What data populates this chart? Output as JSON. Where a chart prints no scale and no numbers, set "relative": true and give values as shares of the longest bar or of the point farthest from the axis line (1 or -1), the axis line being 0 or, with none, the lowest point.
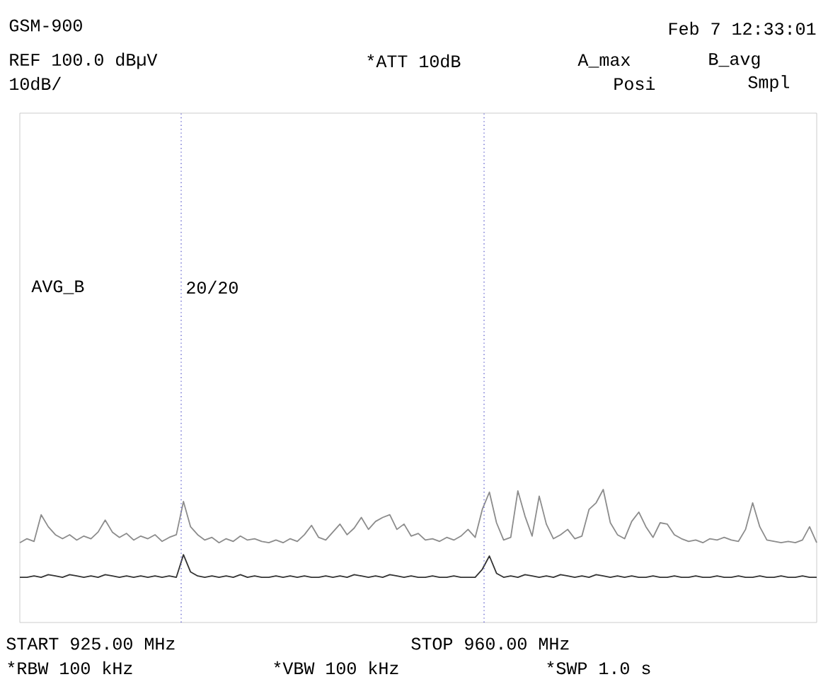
{
  "chart_data": {
    "type": "line",
    "title": "GSM-900",
    "relative": true,
    "categories": [
      null,
      null,
      null,
      null,
      null,
      null,
      null,
      null,
      null,
      null,
      null,
      null,
      null,
      null,
      null,
      null,
      null,
      null,
      null,
      null,
      null,
      null,
      null,
      null,
      null,
      null,
      null,
      null,
      null,
      null,
      null,
      null,
      null,
      null,
      null,
      null,
      null,
      null,
      null,
      null,
      null,
      null,
      null,
      null,
      null,
      null,
      null,
      null,
      null,
      null,
      null,
      null,
      null,
      null,
      null,
      null,
      null,
      null,
      null,
      null,
      null,
      null,
      null,
      null,
      null,
      null,
      null,
      null,
      null,
      null,
      null,
      null,
      null,
      null,
      null,
      null,
      null,
      null,
      null,
      null,
      null,
      null,
      null,
      null,
      null,
      null,
      null,
      null,
      null,
      null,
      null,
      null,
      null,
      null,
      null,
      null,
      null,
      null,
      null,
      null,
      null,
      null,
      null,
      null,
      null,
      null,
      null,
      null,
      null,
      null,
      null,
      null,
      null
    ],
    "series": [
      {
        "color": "#8c8c8c",
        "values": [
          0.6,
          0.63,
          0.61,
          0.81,
          0.72,
          0.66,
          0.63,
          0.66,
          0.62,
          0.65,
          0.63,
          0.68,
          0.77,
          0.68,
          0.64,
          0.67,
          0.62,
          0.65,
          0.63,
          0.66,
          0.61,
          0.64,
          0.66,
          0.91,
          0.72,
          0.66,
          0.62,
          0.64,
          0.6,
          0.63,
          0.61,
          0.65,
          0.62,
          0.63,
          0.61,
          0.6,
          0.62,
          0.6,
          0.63,
          0.61,
          0.66,
          0.73,
          0.64,
          0.62,
          0.68,
          0.74,
          0.66,
          0.71,
          0.79,
          0.7,
          0.76,
          0.79,
          0.81,
          0.7,
          0.74,
          0.65,
          0.67,
          0.62,
          0.63,
          0.61,
          0.64,
          0.62,
          0.65,
          0.7,
          0.64,
          0.85,
          0.98,
          0.75,
          0.62,
          0.64,
          0.99,
          0.8,
          0.65,
          0.95,
          0.74,
          0.63,
          0.66,
          0.7,
          0.63,
          0.65,
          0.85,
          0.9,
          1.0,
          0.75,
          0.66,
          0.63,
          0.76,
          0.83,
          0.72,
          0.64,
          0.75,
          0.74,
          0.66,
          0.63,
          0.61,
          0.62,
          0.6,
          0.63,
          0.62,
          0.64,
          0.62,
          0.61,
          0.7,
          0.9,
          0.72,
          0.62,
          0.61,
          0.6,
          0.61,
          0.6,
          0.62,
          0.72,
          0.6
        ]
      },
      {
        "color": "#333333",
        "values": [
          0.34,
          0.34,
          0.35,
          0.34,
          0.36,
          0.35,
          0.34,
          0.36,
          0.35,
          0.34,
          0.35,
          0.34,
          0.36,
          0.35,
          0.34,
          0.35,
          0.34,
          0.35,
          0.34,
          0.35,
          0.34,
          0.35,
          0.34,
          0.51,
          0.38,
          0.35,
          0.34,
          0.35,
          0.34,
          0.35,
          0.34,
          0.36,
          0.34,
          0.35,
          0.34,
          0.34,
          0.35,
          0.34,
          0.35,
          0.34,
          0.35,
          0.34,
          0.34,
          0.35,
          0.34,
          0.35,
          0.34,
          0.36,
          0.35,
          0.34,
          0.35,
          0.34,
          0.36,
          0.35,
          0.34,
          0.35,
          0.34,
          0.34,
          0.35,
          0.34,
          0.34,
          0.35,
          0.34,
          0.34,
          0.34,
          0.4,
          0.5,
          0.37,
          0.34,
          0.35,
          0.34,
          0.36,
          0.35,
          0.34,
          0.35,
          0.34,
          0.36,
          0.35,
          0.34,
          0.35,
          0.34,
          0.36,
          0.35,
          0.34,
          0.35,
          0.34,
          0.35,
          0.34,
          0.34,
          0.35,
          0.34,
          0.34,
          0.35,
          0.34,
          0.34,
          0.35,
          0.34,
          0.34,
          0.35,
          0.34,
          0.34,
          0.35,
          0.34,
          0.34,
          0.35,
          0.34,
          0.34,
          0.35,
          0.34,
          0.34,
          0.35,
          0.34,
          0.34
        ]
      }
    ],
    "annotations": [
      "Feb  7 12:33:01",
      "REF 100.0 dBµV",
      "*ATT 10dB",
      "A_max",
      "B_avg",
      "10dB/",
      "Posi",
      "Smpl",
      "AVG_B",
      "20/20",
      "START 925.00 MHz",
      "STOP 960.00 MHz",
      "*RBW 100 kHz",
      "*VBW 100 kHz",
      "*SWP 1.0 s"
    ],
    "marker": "none",
    "line_style": "solid"
  }
}
